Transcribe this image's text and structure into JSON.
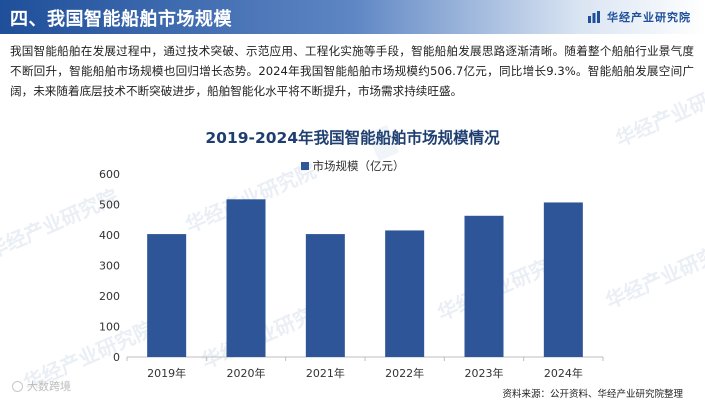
{
  "header": {
    "title": "四、我国智能船舶市场规模",
    "brand": "华经产业研究院",
    "brand_icon": "bar-logo-icon",
    "colors": {
      "bar": "#1f4f9a",
      "accent": "#2e5597"
    }
  },
  "intro": "我国智能船舶在发展过程中，通过技术突破、示范应用、工程化实施等手段，智能船舶发展思路逐渐清晰。随着整个船舶行业景气度不断回升，智能船舶市场规模也回归增长态势。2024年我国智能船舶市场规模约506.7亿元，同比增长9.3%。智能船舶发展空间广阔，未来随着底层技术不断突破进步，船舶智能化水平将不断提升，市场需求持续旺盛。",
  "chart_data": {
    "type": "bar",
    "title": "2019-2024年我国智能船舶市场规模情况",
    "legend": "市场规模（亿元）",
    "legend_position": "top",
    "categories": [
      "2019年",
      "2020年",
      "2021年",
      "2022年",
      "2023年",
      "2024年"
    ],
    "values": [
      403,
      517,
      403,
      415,
      463,
      506.7
    ],
    "ylim": [
      0,
      600
    ],
    "yticks": [
      0,
      100,
      200,
      300,
      400,
      500,
      600
    ],
    "grid": false,
    "bar_color": "#2e5597"
  },
  "watermark": "华经产业研究院",
  "source": "资料来源：公开资料、华经产业研究院整理",
  "corner_logo": "大数跨境"
}
